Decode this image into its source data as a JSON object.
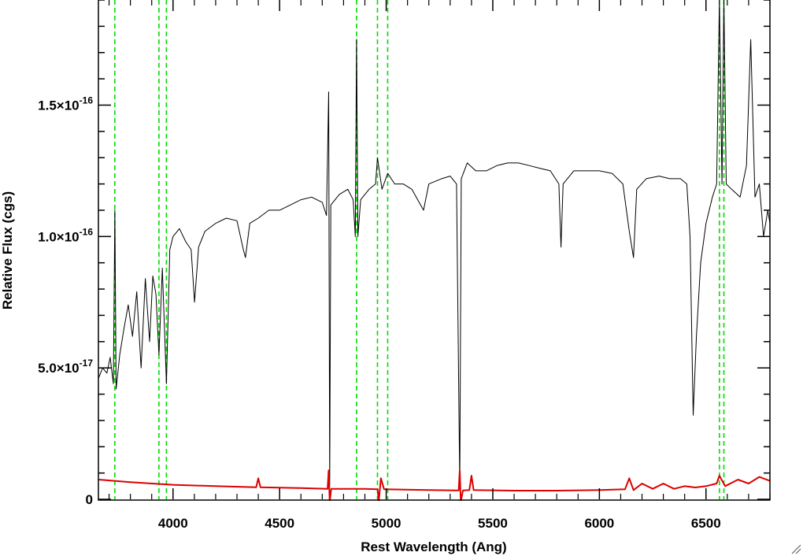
{
  "chart_data": {
    "type": "line",
    "xlabel": "Rest Wavelength (Ang)",
    "ylabel": "Relative Flux (cgs)",
    "xlim": [
      3650,
      6800
    ],
    "ylim": [
      0,
      1.9e-16
    ],
    "x_ticks": [
      {
        "value": 4000,
        "label": "4000"
      },
      {
        "value": 4500,
        "label": "4500"
      },
      {
        "value": 5000,
        "label": "5000"
      },
      {
        "value": 5500,
        "label": "5500"
      },
      {
        "value": 6000,
        "label": "6000"
      },
      {
        "value": 6500,
        "label": "6500"
      }
    ],
    "y_ticks": [
      {
        "value": 0,
        "mantissa": "0",
        "exponent": ""
      },
      {
        "value": 5e-17,
        "mantissa": "5.0×10",
        "exponent": "-17"
      },
      {
        "value": 1e-16,
        "mantissa": "1.0×10",
        "exponent": "-16"
      },
      {
        "value": 1.5e-16,
        "mantissa": "1.5×10",
        "exponent": "-16"
      }
    ],
    "reference_lines": {
      "color": "#00dd00",
      "style": "dashed",
      "x": [
        3727,
        3934,
        3969,
        4861,
        4959,
        5007,
        6563,
        6584
      ]
    },
    "series": [
      {
        "color": "#000000",
        "points": [
          [
            3650,
            4.6e-17
          ],
          [
            3670,
            5e-17
          ],
          [
            3690,
            4.8e-17
          ],
          [
            3705,
            5.4e-17
          ],
          [
            3720,
            4.4e-17
          ],
          [
            3727,
            1.1e-16
          ],
          [
            3733,
            4.2e-17
          ],
          [
            3750,
            5.5e-17
          ],
          [
            3770,
            6.5e-17
          ],
          [
            3790,
            7.4e-17
          ],
          [
            3810,
            6.2e-17
          ],
          [
            3830,
            7.9e-17
          ],
          [
            3850,
            5e-17
          ],
          [
            3870,
            8.4e-17
          ],
          [
            3890,
            6e-17
          ],
          [
            3905,
            8.5e-17
          ],
          [
            3920,
            7.8e-17
          ],
          [
            3934,
            5.5e-17
          ],
          [
            3950,
            8.8e-17
          ],
          [
            3969,
            4.4e-17
          ],
          [
            3985,
            9.5e-17
          ],
          [
            4000,
            1e-16
          ],
          [
            4030,
            1.03e-16
          ],
          [
            4060,
            9.8e-17
          ],
          [
            4085,
            9.5e-17
          ],
          [
            4101,
            7.5e-17
          ],
          [
            4120,
            9.6e-17
          ],
          [
            4150,
            1.02e-16
          ],
          [
            4200,
            1.05e-16
          ],
          [
            4250,
            1.07e-16
          ],
          [
            4300,
            1.06e-16
          ],
          [
            4330,
            9.5e-17
          ],
          [
            4340,
            9.2e-17
          ],
          [
            4360,
            1.05e-16
          ],
          [
            4400,
            1.07e-16
          ],
          [
            4450,
            1.1e-16
          ],
          [
            4500,
            1.1e-16
          ],
          [
            4550,
            1.12e-16
          ],
          [
            4600,
            1.14e-16
          ],
          [
            4650,
            1.15e-16
          ],
          [
            4700,
            1.13e-16
          ],
          [
            4720,
            1.08e-16
          ],
          [
            4730,
            1.55e-16
          ],
          [
            4735,
            5e-18
          ],
          [
            4740,
            1.12e-16
          ],
          [
            4780,
            1.16e-16
          ],
          [
            4820,
            1.18e-16
          ],
          [
            4845,
            1.14e-16
          ],
          [
            4855,
            1e-16
          ],
          [
            4861,
            1.75e-16
          ],
          [
            4867,
            1e-16
          ],
          [
            4880,
            1.14e-16
          ],
          [
            4920,
            1.18e-16
          ],
          [
            4950,
            1.2e-16
          ],
          [
            4959,
            1.3e-16
          ],
          [
            4980,
            1.18e-16
          ],
          [
            5007,
            1.24e-16
          ],
          [
            5040,
            1.2e-16
          ],
          [
            5080,
            1.2e-16
          ],
          [
            5120,
            1.18e-16
          ],
          [
            5175,
            1.1e-16
          ],
          [
            5200,
            1.2e-16
          ],
          [
            5260,
            1.22e-16
          ],
          [
            5300,
            1.23e-16
          ],
          [
            5330,
            1.2e-16
          ],
          [
            5345,
            5e-18
          ],
          [
            5352,
            1.22e-16
          ],
          [
            5380,
            1.28e-16
          ],
          [
            5420,
            1.25e-16
          ],
          [
            5470,
            1.25e-16
          ],
          [
            5520,
            1.27e-16
          ],
          [
            5570,
            1.28e-16
          ],
          [
            5620,
            1.28e-16
          ],
          [
            5670,
            1.27e-16
          ],
          [
            5720,
            1.26e-16
          ],
          [
            5770,
            1.25e-16
          ],
          [
            5810,
            1.2e-16
          ],
          [
            5820,
            9.6e-17
          ],
          [
            5830,
            1.2e-16
          ],
          [
            5880,
            1.25e-16
          ],
          [
            5940,
            1.25e-16
          ],
          [
            6000,
            1.25e-16
          ],
          [
            6060,
            1.24e-16
          ],
          [
            6110,
            1.2e-16
          ],
          [
            6140,
            1.02e-16
          ],
          [
            6160,
            9.2e-17
          ],
          [
            6175,
            1.18e-16
          ],
          [
            6220,
            1.22e-16
          ],
          [
            6280,
            1.23e-16
          ],
          [
            6330,
            1.22e-16
          ],
          [
            6380,
            1.22e-16
          ],
          [
            6410,
            1.2e-16
          ],
          [
            6425,
            1e-16
          ],
          [
            6440,
            3.2e-17
          ],
          [
            6455,
            6.2e-17
          ],
          [
            6475,
            9e-17
          ],
          [
            6500,
            1.05e-16
          ],
          [
            6530,
            1.15e-16
          ],
          [
            6550,
            1.2e-16
          ],
          [
            6563,
            1.9e-16
          ],
          [
            6575,
            1.2e-16
          ],
          [
            6584,
            1.9e-16
          ],
          [
            6595,
            1.2e-16
          ],
          [
            6620,
            1.18e-16
          ],
          [
            6660,
            1.15e-16
          ],
          [
            6690,
            1.27e-16
          ],
          [
            6710,
            1.75e-16
          ],
          [
            6730,
            1.15e-16
          ],
          [
            6750,
            1.2e-16
          ],
          [
            6770,
            1e-16
          ],
          [
            6790,
            1.1e-16
          ],
          [
            6800,
            1.05e-16
          ]
        ]
      },
      {
        "color": "#dd0000",
        "points": [
          [
            3650,
            7.5e-18
          ],
          [
            3800,
            6.5e-18
          ],
          [
            4000,
            5.5e-18
          ],
          [
            4200,
            5e-18
          ],
          [
            4390,
            4.6e-18
          ],
          [
            4400,
            8e-18
          ],
          [
            4410,
            4.6e-18
          ],
          [
            4600,
            4.3e-18
          ],
          [
            4725,
            4e-18
          ],
          [
            4730,
            1.1e-17
          ],
          [
            4735,
            -1e-18
          ],
          [
            4742,
            4e-18
          ],
          [
            4900,
            4e-18
          ],
          [
            4960,
            3.8e-18
          ],
          [
            4965,
            -1e-18
          ],
          [
            4975,
            8e-18
          ],
          [
            4990,
            3.8e-18
          ],
          [
            5200,
            3.5e-18
          ],
          [
            5340,
            3.4e-18
          ],
          [
            5345,
            1.1e-17
          ],
          [
            5350,
            -1e-18
          ],
          [
            5360,
            3.4e-18
          ],
          [
            5390,
            3.5e-18
          ],
          [
            5400,
            9e-18
          ],
          [
            5410,
            3.5e-18
          ],
          [
            5600,
            3.3e-18
          ],
          [
            5800,
            3.3e-18
          ],
          [
            6000,
            3.5e-18
          ],
          [
            6120,
            3.8e-18
          ],
          [
            6140,
            8e-18
          ],
          [
            6160,
            3.5e-18
          ],
          [
            6200,
            6e-18
          ],
          [
            6250,
            4e-18
          ],
          [
            6300,
            6e-18
          ],
          [
            6350,
            4e-18
          ],
          [
            6400,
            5e-18
          ],
          [
            6450,
            4.5e-18
          ],
          [
            6500,
            5e-18
          ],
          [
            6550,
            6e-18
          ],
          [
            6563,
            9e-18
          ],
          [
            6590,
            5e-18
          ],
          [
            6650,
            7.5e-18
          ],
          [
            6700,
            6e-18
          ],
          [
            6750,
            8.5e-18
          ],
          [
            6800,
            7e-18
          ]
        ]
      }
    ]
  }
}
